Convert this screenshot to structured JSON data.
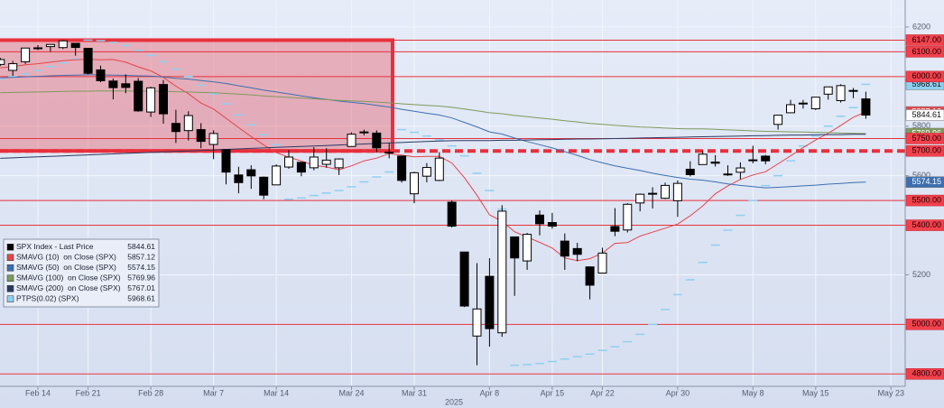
{
  "chart_data": {
    "type": "candlestick",
    "xlabel": "2025",
    "categories": [
      null,
      null,
      null,
      "Feb 14",
      null,
      null,
      null,
      "Feb 21",
      null,
      null,
      null,
      null,
      "Feb 28",
      null,
      null,
      null,
      null,
      "Mar 7",
      null,
      null,
      null,
      null,
      "Mar 14",
      null,
      null,
      null,
      null,
      null,
      "Mar 24",
      null,
      null,
      null,
      null,
      "Mar 31",
      null,
      null,
      null,
      null,
      null,
      "Apr 8",
      null,
      null,
      null,
      null,
      "Apr 15",
      null,
      null,
      null,
      "Apr 22",
      null,
      null,
      null,
      null,
      null,
      "Apr 30",
      null,
      null,
      null,
      null,
      null,
      "May 8",
      null,
      null,
      null,
      null,
      "May 15",
      null,
      null,
      null,
      null,
      null,
      "May 23"
    ],
    "ylim": [
      4750,
      6309
    ],
    "yticks": [
      4800,
      5000,
      5200,
      5400,
      5600,
      5800,
      6000,
      6200
    ],
    "grid": true,
    "candles": {
      "name": "SPX Index - Last Price",
      "up_color": "#ffffff",
      "down_color": "#000000",
      "open": [
        6049,
        6025,
        6060,
        6116,
        6121,
        6117,
        6134,
        6114,
        6027,
        5982,
        5971,
        5981,
        5857,
        5968,
        5811,
        5782,
        5786,
        5726,
        5705,
        5603,
        5624,
        5594,
        5563,
        5635,
        5654,
        5632,
        5646,
        5632,
        5718,
        5776,
        5772,
        5695,
        5679,
        5527,
        5598,
        5581,
        5493,
        5292,
        4953,
        5194,
        4966,
        5353,
        5256,
        5441,
        5411,
        5336,
        5306,
        5232,
        5207,
        5395,
        5381,
        5490,
        5529,
        5509,
        5499,
        5626,
        5645,
        5655,
        5605,
        5614,
        5663,
        5679,
        5807,
        5854,
        5893,
        5870,
        5929,
        5903,
        5944,
        5910,
        null,
        null
      ],
      "high": [
        6076,
        6063,
        6116,
        6127,
        6130,
        6147,
        6134,
        6115,
        6044,
        5992,
        6009,
        5994,
        5959,
        5986,
        5866,
        5860,
        5812,
        5783,
        5705,
        5636,
        5642,
        5597,
        5646,
        5703,
        5654,
        5715,
        5711,
        5670,
        5775,
        5786,
        5783,
        5732,
        5679,
        5616,
        5651,
        5695,
        5500,
        5292,
        5247,
        5267,
        5481,
        5353,
        5369,
        5460,
        5450,
        5367,
        5329,
        5233,
        5309,
        5469,
        5489,
        5528,
        5553,
        5572,
        5581,
        5658,
        5700,
        5683,
        5642,
        5654,
        5721,
        5684,
        5845,
        5906,
        5906,
        5917,
        5959,
        5969,
        5954,
        5939,
        null,
        null
      ],
      "low": [
        6042,
        6003,
        6051,
        6107,
        6100,
        6111,
        6084,
        6009,
        5977,
        5908,
        5933,
        5858,
        5837,
        5810,
        5732,
        5742,
        5711,
        5667,
        5565,
        5529,
        5547,
        5505,
        5563,
        5628,
        5598,
        5622,
        5632,
        5603,
        5718,
        5763,
        5695,
        5670,
        5572,
        5489,
        5573,
        5578,
        5391,
        5070,
        4835,
        4910,
        4950,
        5115,
        5220,
        5359,
        5386,
        5220,
        5255,
        5101,
        5207,
        5356,
        5371,
        5456,
        5468,
        5506,
        5434,
        5597,
        5645,
        5637,
        5599,
        5586,
        5650,
        5646,
        5786,
        5854,
        5871,
        5865,
        5907,
        5895,
        5913,
        5830,
        null,
        null
      ],
      "close": [
        6068.5,
        6051.97,
        6115.07,
        6114.63,
        6129.58,
        6144.15,
        6117.52,
        6013.13,
        5983.25,
        5955.25,
        5956.06,
        5861.57,
        5954.5,
        5849.72,
        5778.15,
        5842.63,
        5738.52,
        5770.2,
        5614.56,
        5572.07,
        5599.3,
        5521.52,
        5638.94,
        5675.12,
        5614.66,
        5675.29,
        5662.89,
        5667.56,
        5767.57,
        5776.65,
        5712.2,
        5693.31,
        5580.94,
        5611.85,
        5633.07,
        5670.97,
        5396.52,
        5074.08,
        5062.25,
        4982.77,
        5456.9,
        5268.05,
        5363.36,
        5405.97,
        5396.63,
        5275.7,
        5282.7,
        5158.2,
        5287.76,
        5375.86,
        5484.77,
        5525.21,
        5528.75,
        5560.83,
        5569.06,
        5604.14,
        5686.67,
        5650.38,
        5606.91,
        5631.28,
        5663.94,
        5659.91,
        5844.19,
        5886.55,
        5892.58,
        5916.93,
        5958.38,
        5963.6,
        5940.46,
        5844.61,
        null,
        null
      ]
    },
    "series": [
      {
        "name": "SMAVG (10)  on Close (SPX)",
        "color": "#e8434a",
        "style": "line",
        "values": [
          6035,
          6040,
          6048,
          6052,
          6058,
          6064,
          6068,
          6070,
          6068,
          6069,
          6058,
          6039,
          6023,
          5997,
          5961,
          5931,
          5893,
          5869,
          5832,
          5794,
          5758,
          5724,
          5693,
          5675,
          5659,
          5642,
          5635,
          5624,
          5640,
          5660,
          5671,
          5689,
          5683,
          5676,
          5678,
          5678,
          5651,
          5592,
          5521,
          5442,
          5416,
          5374,
          5352,
          5331,
          5308,
          5268,
          5257,
          5265,
          5288,
          5327,
          5330,
          5356,
          5372,
          5388,
          5405,
          5438,
          5478,
          5527,
          5559,
          5585,
          5603,
          5616,
          5648,
          5680,
          5713,
          5744,
          5771,
          5803,
          5836,
          5857.12,
          null,
          null
        ]
      },
      {
        "name": "SMAVG (50)  on Close (SPX)",
        "color": "#3d6fb0",
        "style": "line",
        "values": [
          5995,
          5997,
          5999,
          6001,
          6003,
          6005,
          6006,
          6007,
          6007,
          6006,
          6005,
          6003,
          6002,
          5998,
          5993,
          5990,
          5984,
          5979,
          5972,
          5963,
          5955,
          5945,
          5938,
          5930,
          5922,
          5915,
          5908,
          5901,
          5896,
          5891,
          5884,
          5877,
          5868,
          5860,
          5852,
          5845,
          5833,
          5815,
          5797,
          5777,
          5768,
          5752,
          5738,
          5725,
          5712,
          5697,
          5682,
          5665,
          5652,
          5640,
          5630,
          5621,
          5610,
          5601,
          5593,
          5586,
          5582,
          5575,
          5567,
          5561,
          5556,
          5551,
          5553,
          5556,
          5559,
          5562,
          5566,
          5569,
          5572,
          5574.15,
          null,
          null
        ]
      },
      {
        "name": "SMAVG (100)  on Close (SPX)",
        "color": "#7e9a5c",
        "style": "line",
        "values": [
          5935,
          5936,
          5937,
          5938,
          5939,
          5940,
          5941,
          5941,
          5942,
          5942,
          5942,
          5941,
          5941,
          5940,
          5939,
          5938,
          5936,
          5935,
          5932,
          5929,
          5926,
          5922,
          5919,
          5916,
          5913,
          5910,
          5907,
          5904,
          5902,
          5900,
          5897,
          5894,
          5890,
          5887,
          5884,
          5881,
          5876,
          5869,
          5862,
          5854,
          5850,
          5843,
          5838,
          5833,
          5828,
          5822,
          5817,
          5811,
          5807,
          5803,
          5800,
          5797,
          5795,
          5792,
          5790,
          5789,
          5789,
          5787,
          5785,
          5783,
          5781,
          5779,
          5778,
          5777,
          5776,
          5775,
          5774,
          5772,
          5771,
          5769.96,
          null,
          null
        ]
      },
      {
        "name": "SMAVG (200)  on Close (SPX)",
        "color": "#2b3a62",
        "style": "line",
        "values": [
          5670,
          5672,
          5674,
          5676,
          5678,
          5680,
          5682,
          5684,
          5686,
          5688,
          5690,
          5692,
          5694,
          5696,
          5698,
          5700,
          5702,
          5704,
          5706,
          5708,
          5710,
          5712,
          5714,
          5716,
          5718,
          5720,
          5722,
          5724,
          5726,
          5728,
          5730,
          5732,
          5734,
          5736,
          5738,
          5740,
          5741,
          5742,
          5742,
          5742,
          5743,
          5743,
          5744,
          5745,
          5746,
          5747,
          5748,
          5748,
          5749,
          5750,
          5751,
          5752,
          5753,
          5754,
          5755,
          5756,
          5757,
          5758,
          5759,
          5760,
          5761,
          5762,
          5763,
          5764,
          5764,
          5765,
          5766,
          5766,
          5767,
          5767.01,
          null,
          null
        ]
      },
      {
        "name": "PTPS(0.02) (SPX)",
        "color": "#8fd0f0",
        "style": "dash",
        "values": [
          5990,
          6000,
          6010,
          6025,
          6040,
          6055,
          6070,
          6147,
          6145,
          6138,
          6125,
          6105,
          6085,
          6060,
          6030,
          6000,
          5965,
          5930,
          5890,
          5845,
          5805,
          5765,
          5725,
          5505,
          5510,
          5520,
          5530,
          5540,
          5555,
          5575,
          5595,
          5615,
          5786,
          5775,
          5760,
          5745,
          5720,
          5680,
          5610,
          5540,
          5465,
          4835,
          4838,
          4842,
          4850,
          4860,
          4870,
          4880,
          4895,
          4910,
          4930,
          4960,
          5000,
          5060,
          5120,
          5180,
          5250,
          5320,
          5380,
          5440,
          5500,
          5560,
          5600,
          5660,
          5720,
          5760,
          5800,
          5840,
          5875,
          5968.61,
          null,
          null
        ]
      }
    ],
    "levels": {
      "color": "#e8303c",
      "values": [
        6147,
        6100,
        6000,
        5750,
        5700,
        5500,
        5400,
        5000,
        4800
      ],
      "value_labels": [
        "6147.00",
        "6100.00",
        "6000.00",
        "5750.00",
        "5700.00",
        "5500.00",
        "5400.00",
        "5000.00",
        "4800.00"
      ],
      "styles": [
        "solid",
        "solid",
        "solid",
        "solid",
        "dashed",
        "solid",
        "solid",
        "solid",
        "solid"
      ]
    },
    "zone": {
      "ylim": [
        5700,
        6147
      ],
      "color": "#e8303c"
    },
    "legend": "lower left"
  }
}
